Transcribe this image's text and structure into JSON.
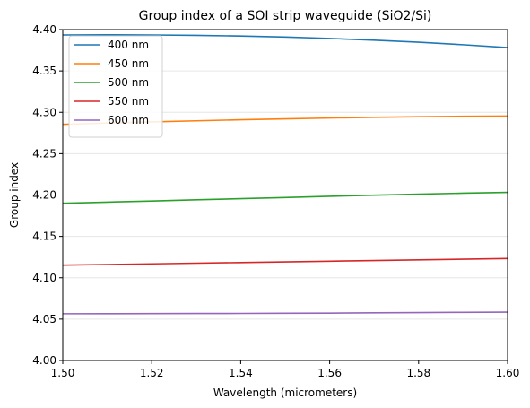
{
  "chart_data": {
    "type": "line",
    "title": "Group index of a SOI strip waveguide (SiO2/Si)",
    "xlabel": "Wavelength (micrometers)",
    "ylabel": "Group index",
    "xlim": [
      1.5,
      1.6
    ],
    "ylim": [
      4.0,
      4.4
    ],
    "xticks": [
      "1.50",
      "1.52",
      "1.54",
      "1.56",
      "1.58",
      "1.60"
    ],
    "yticks": [
      "4.00",
      "4.05",
      "4.10",
      "4.15",
      "4.20",
      "4.25",
      "4.30",
      "4.35",
      "4.40"
    ],
    "grid": "horizontal",
    "legend_position": "top-left",
    "x": [
      1.5,
      1.51,
      1.52,
      1.53,
      1.54,
      1.55,
      1.56,
      1.57,
      1.58,
      1.59,
      1.6
    ],
    "series": [
      {
        "name": "400 nm",
        "color": "#1f77b4",
        "values": [
          4.3935,
          4.3937,
          4.3935,
          4.393,
          4.3922,
          4.391,
          4.3893,
          4.3872,
          4.3847,
          4.3817,
          4.3782
        ]
      },
      {
        "name": "450 nm",
        "color": "#ff7f0e",
        "values": [
          4.2855,
          4.287,
          4.2884,
          4.2897,
          4.291,
          4.2921,
          4.2931,
          4.294,
          4.2947,
          4.2952,
          4.2955
        ]
      },
      {
        "name": "500 nm",
        "color": "#2ca02c",
        "values": [
          4.19,
          4.1914,
          4.1928,
          4.1942,
          4.1956,
          4.197,
          4.1984,
          4.1998,
          4.201,
          4.2022,
          4.2032
        ]
      },
      {
        "name": "550 nm",
        "color": "#d62728",
        "values": [
          4.1152,
          4.116,
          4.1168,
          4.1176,
          4.1184,
          4.1192,
          4.12,
          4.1208,
          4.1216,
          4.1224,
          4.1232
        ]
      },
      {
        "name": "600 nm",
        "color": "#9467bd",
        "values": [
          4.0565,
          4.0566,
          4.0567,
          4.0568,
          4.0569,
          4.0571,
          4.0573,
          4.0576,
          4.0579,
          4.0582,
          4.0585
        ]
      }
    ]
  }
}
